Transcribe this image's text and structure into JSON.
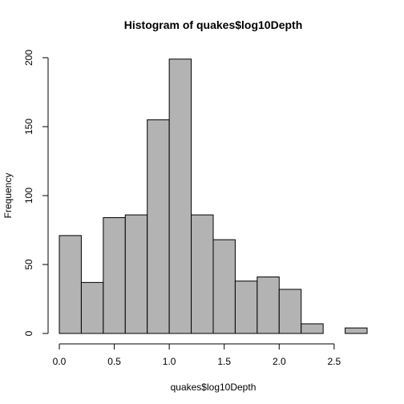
{
  "chart_data": {
    "type": "bar",
    "title": "Histogram of quakes$log10Depth",
    "xlabel": "quakes$log10Depth",
    "ylabel": "Frequency",
    "bin_edges": [
      0.0,
      0.2,
      0.4,
      0.6,
      0.8,
      1.0,
      1.2,
      1.4,
      1.6,
      1.8,
      2.0,
      2.2,
      2.4,
      2.6,
      2.8
    ],
    "values": [
      71,
      37,
      84,
      86,
      155,
      199,
      86,
      68,
      38,
      41,
      32,
      7,
      0,
      4
    ],
    "xlim": [
      0.0,
      2.8
    ],
    "ylim": [
      0,
      200
    ],
    "x_ticks": [
      0.0,
      0.5,
      1.0,
      1.5,
      2.0,
      2.5
    ],
    "x_tick_labels": [
      "0.0",
      "0.5",
      "1.0",
      "1.5",
      "2.0",
      "2.5"
    ],
    "y_ticks": [
      0,
      50,
      100,
      150,
      200
    ],
    "y_tick_labels": [
      "0",
      "50",
      "100",
      "150",
      "200"
    ],
    "bar_color": "#b3b3b3",
    "grid": false
  }
}
